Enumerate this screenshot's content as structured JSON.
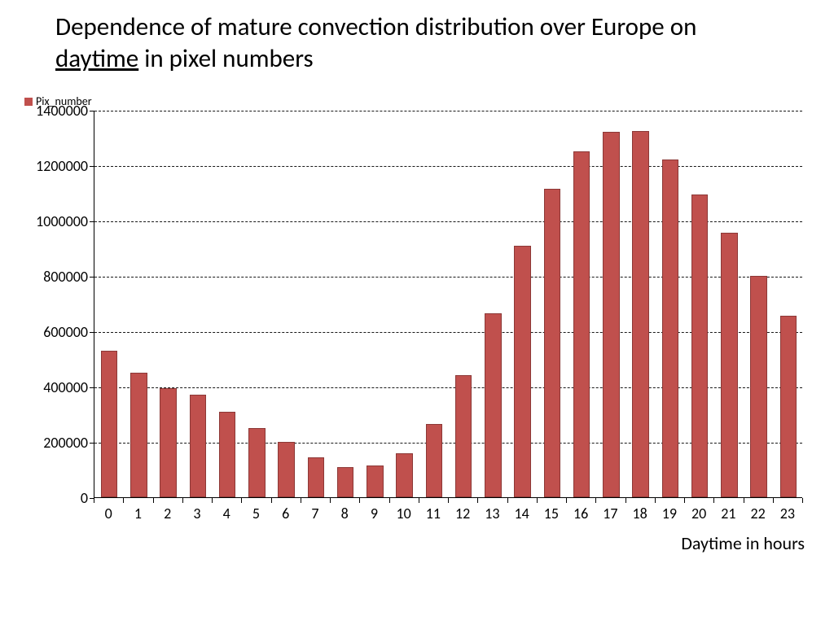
{
  "title_pre": "Dependence of mature convection distribution over Europe on ",
  "title_underlined": "daytime",
  "title_post": " in pixel numbers",
  "legend_label": "Pix_number",
  "xaxis_title": "Daytime in hours",
  "chart": {
    "type": "bar",
    "categories": [
      "0",
      "1",
      "2",
      "3",
      "4",
      "5",
      "6",
      "7",
      "8",
      "9",
      "10",
      "11",
      "12",
      "13",
      "14",
      "15",
      "16",
      "17",
      "18",
      "19",
      "20",
      "21",
      "22",
      "23"
    ],
    "values": [
      530000,
      450000,
      395000,
      370000,
      310000,
      250000,
      200000,
      145000,
      110000,
      115000,
      160000,
      265000,
      440000,
      665000,
      910000,
      1115000,
      1250000,
      1320000,
      1325000,
      1220000,
      1095000,
      955000,
      800000,
      655000
    ],
    "bar_color": "#c0504d",
    "bar_border_color": "#8c3836",
    "background_color": "#ffffff",
    "ylim": [
      0,
      1400000
    ],
    "ytick_step": 200000,
    "ytick_labels": [
      "0",
      "200000",
      "400000",
      "600000",
      "800000",
      "1000000",
      "1200000",
      "1400000"
    ],
    "bar_width_ratio": 0.56,
    "grid_dash": true,
    "title_fontsize": 31,
    "axis_label_fontsize": 18,
    "xaxis_title_fontsize": 22
  }
}
